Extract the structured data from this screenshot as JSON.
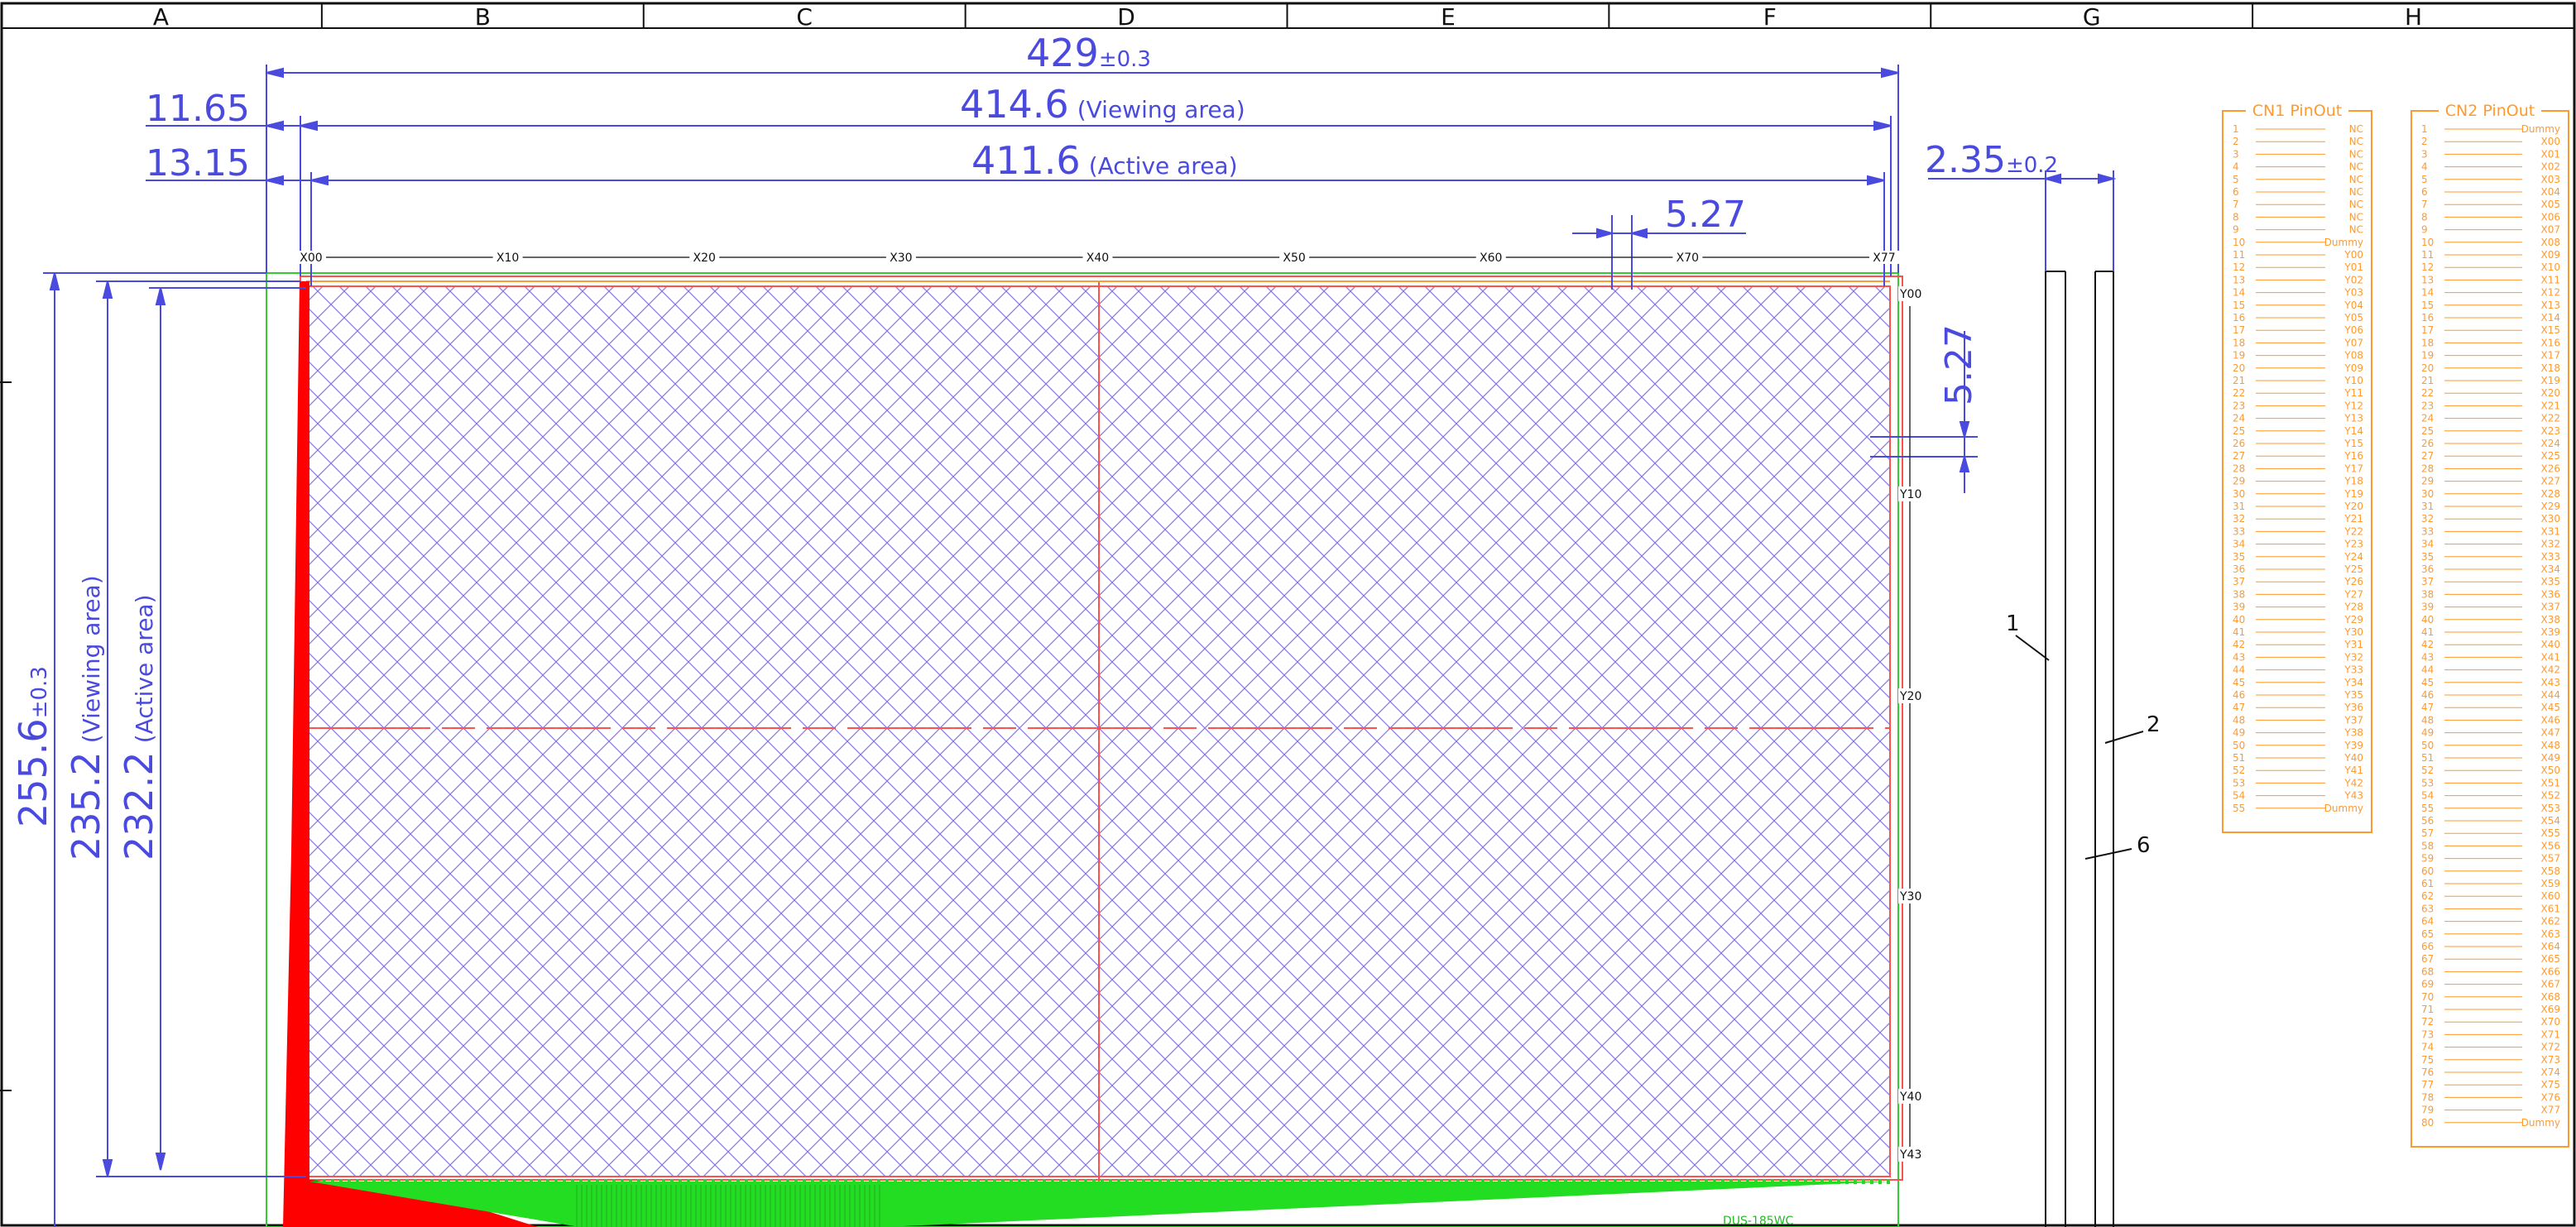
{
  "columns": [
    "A",
    "B",
    "C",
    "D",
    "E",
    "F",
    "G",
    "H"
  ],
  "colors": {
    "dimension": "#4a4adf",
    "frame": "#111111",
    "outline": "#33cc33",
    "trace_red": "#ff0000",
    "pin_orange": "#ff9a2e",
    "grid_purple": "#8a78e8",
    "center_line": "#ff5050"
  },
  "dimensions": {
    "overall_width": {
      "value": "429",
      "tolerance": "±0.3"
    },
    "viewing_width": {
      "value": "414.6",
      "note": "(Viewing area)"
    },
    "active_width": {
      "value": "411.6",
      "note": "(Active area)"
    },
    "left_viewing_offset": "11.65",
    "left_active_offset": "13.15",
    "thickness": {
      "value": "2.35",
      "tolerance": "±0.2"
    },
    "pitch_x": "5.27",
    "pitch_y": "5.27",
    "overall_height": {
      "value": "255.6",
      "tolerance": "±0.3"
    },
    "viewing_height": {
      "value": "235.2",
      "note": "(Viewing area)"
    },
    "active_height": {
      "value": "232.2",
      "note": "(Active area)"
    }
  },
  "x_channels": [
    "X00",
    "X10",
    "X20",
    "X30",
    "X40",
    "X50",
    "X60",
    "X70",
    "X77"
  ],
  "y_channels": [
    "Y00",
    "Y10",
    "Y20",
    "Y30",
    "Y40",
    "Y43"
  ],
  "callouts": [
    "1",
    "2",
    "6"
  ],
  "bottom_label": "DUS-185WC",
  "cn1": {
    "title": "CN1 PinOut",
    "pins": [
      "NC",
      "NC",
      "NC",
      "NC",
      "NC",
      "NC",
      "NC",
      "NC",
      "NC",
      "Dummy",
      "Y00",
      "Y01",
      "Y02",
      "Y03",
      "Y04",
      "Y05",
      "Y06",
      "Y07",
      "Y08",
      "Y09",
      "Y10",
      "Y11",
      "Y12",
      "Y13",
      "Y14",
      "Y15",
      "Y16",
      "Y17",
      "Y18",
      "Y19",
      "Y20",
      "Y21",
      "Y22",
      "Y23",
      "Y24",
      "Y25",
      "Y26",
      "Y27",
      "Y28",
      "Y29",
      "Y30",
      "Y31",
      "Y32",
      "Y33",
      "Y34",
      "Y35",
      "Y36",
      "Y37",
      "Y38",
      "Y39",
      "Y40",
      "Y41",
      "Y42",
      "Y43",
      "Dummy"
    ]
  },
  "cn2": {
    "title": "CN2 PinOut",
    "pins": [
      "Dummy",
      "X00",
      "X01",
      "X02",
      "X03",
      "X04",
      "X05",
      "X06",
      "X07",
      "X08",
      "X09",
      "X10",
      "X11",
      "X12",
      "X13",
      "X14",
      "X15",
      "X16",
      "X17",
      "X18",
      "X19",
      "X20",
      "X21",
      "X22",
      "X23",
      "X24",
      "X25",
      "X26",
      "X27",
      "X28",
      "X29",
      "X30",
      "X31",
      "X32",
      "X33",
      "X34",
      "X35",
      "X36",
      "X37",
      "X38",
      "X39",
      "X40",
      "X41",
      "X42",
      "X43",
      "X44",
      "X45",
      "X46",
      "X47",
      "X48",
      "X49",
      "X50",
      "X51",
      "X52",
      "X53",
      "X54",
      "X55",
      "X56",
      "X57",
      "X58",
      "X59",
      "X60",
      "X61",
      "X62",
      "X63",
      "X64",
      "X65",
      "X66",
      "X67",
      "X68",
      "X69",
      "X70",
      "X71",
      "X72",
      "X73",
      "X74",
      "X75",
      "X76",
      "X77",
      "Dummy"
    ]
  }
}
